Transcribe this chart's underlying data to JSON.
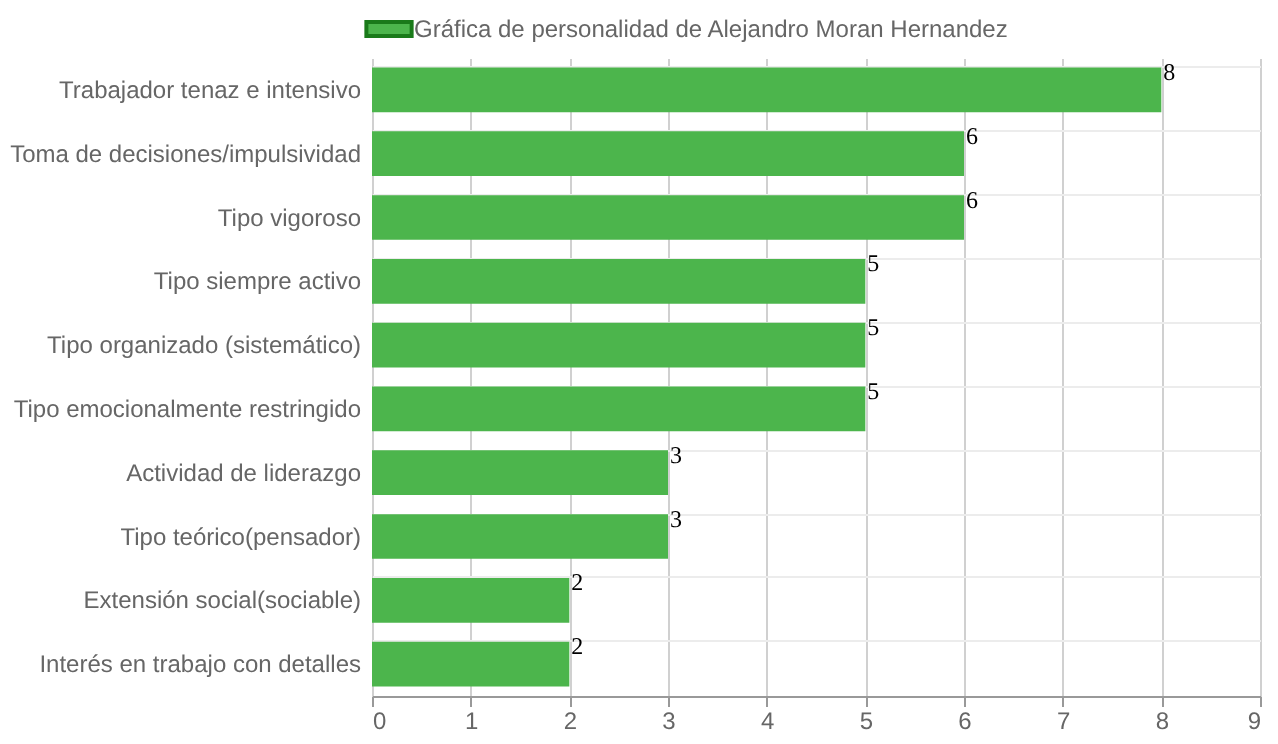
{
  "chart_data": {
    "type": "bar",
    "orientation": "horizontal",
    "categories": [
      "Trabajador tenaz e intensivo",
      "Toma de decisiones/impulsividad",
      "Tipo vigoroso",
      "Tipo siempre activo",
      "Tipo organizado (sistemático)",
      "Tipo emocionalmente restringido",
      "Actividad de liderazgo",
      "Tipo teórico(pensador)",
      "Extensión social(sociable)",
      "Interés en trabajo con detalles"
    ],
    "series": [
      {
        "name": "Gráfica de personalidad de Alejandro Moran Hernandez",
        "color": "#4cb54c",
        "values": [
          8,
          6,
          6,
          5,
          5,
          5,
          3,
          3,
          2,
          2
        ]
      }
    ],
    "xlim": [
      0,
      9
    ],
    "xticks": [
      0,
      1,
      2,
      3,
      4,
      5,
      6,
      7,
      8,
      9
    ],
    "grid": true,
    "legend": "top",
    "data_labels": true
  }
}
